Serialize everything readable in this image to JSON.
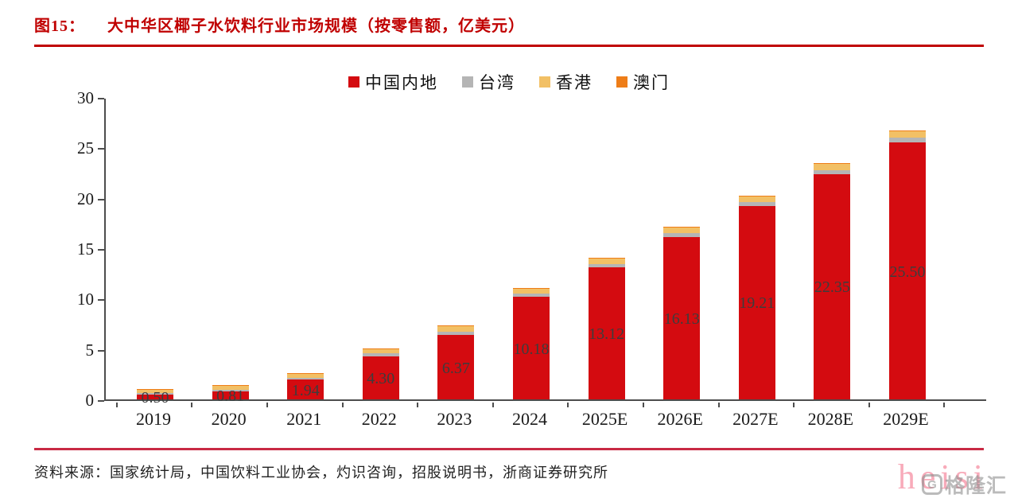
{
  "figure_label": "图15：",
  "accent_color": "#c00000",
  "chart_data": {
    "type": "bar",
    "stacked": true,
    "title": "大中华区椰子水饮料行业市场规模（按零售额，亿美元）",
    "categories": [
      "2019",
      "2020",
      "2021",
      "2022",
      "2023",
      "2024",
      "2025E",
      "2026E",
      "2027E",
      "2028E",
      "2029E"
    ],
    "series": [
      {
        "name": "中国内地",
        "color": "#d40b10",
        "values": [
          0.5,
          0.81,
          1.94,
          4.3,
          6.37,
          10.18,
          13.12,
          16.13,
          19.21,
          22.35,
          25.5
        ]
      },
      {
        "name": "台湾",
        "color": "#b5b5b5",
        "values": [
          0.15,
          0.17,
          0.2,
          0.25,
          0.35,
          0.32,
          0.34,
          0.37,
          0.4,
          0.42,
          0.45
        ]
      },
      {
        "name": "香港",
        "color": "#f2c065",
        "values": [
          0.32,
          0.34,
          0.38,
          0.42,
          0.55,
          0.46,
          0.48,
          0.52,
          0.55,
          0.58,
          0.62
        ]
      },
      {
        "name": "澳门",
        "color": "#ee7d18",
        "values": [
          0.02,
          0.02,
          0.03,
          0.03,
          0.04,
          0.04,
          0.05,
          0.05,
          0.06,
          0.06,
          0.07
        ]
      }
    ],
    "bar_labels": [
      "0.50",
      "0.81",
      "1.94",
      "4.30",
      "6.37",
      "10.18",
      "13.12",
      "16.13",
      "19.21",
      "22.35",
      "25.50"
    ],
    "ylabel": "",
    "xlabel": "",
    "ylim": [
      0,
      30
    ],
    "yticks": [
      0,
      5,
      10,
      15,
      20,
      25,
      30
    ],
    "legend_position": "top-center",
    "grid": false
  },
  "source": {
    "text": "资料来源：国家统计局，中国饮料工业协会，灼识咨询，招股说明书，浙商证券研究所"
  },
  "watermark": {
    "text": "heisi",
    "logo_letter": "G",
    "logo_text": "格隆汇"
  }
}
